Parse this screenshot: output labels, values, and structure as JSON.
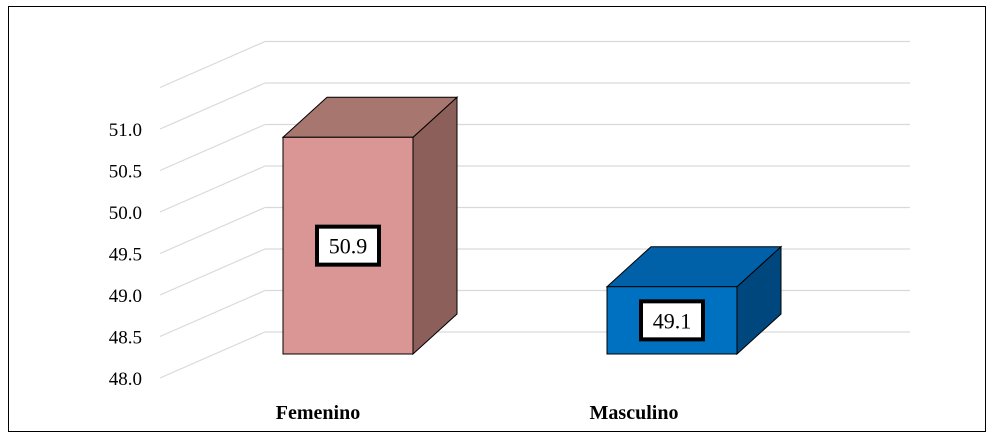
{
  "chart_data": {
    "type": "bar",
    "style": "3d-column",
    "categories": [
      "Femenino",
      "Masculino"
    ],
    "values": [
      50.9,
      49.1
    ],
    "data_labels": [
      "50.9",
      "49.1"
    ],
    "ylim": [
      48.0,
      51.0
    ],
    "yticks": [
      "48.0",
      "48.5",
      "49.0",
      "49.5",
      "50.0",
      "50.5",
      "51.0"
    ],
    "grid": true,
    "legend": "none",
    "colors": {
      "femenino_front": "#d99694",
      "femenino_top": "#a6766f",
      "femenino_side": "#8c5f5a",
      "masculino_front": "#0070c0",
      "masculino_top": "#0061a8",
      "masculino_side": "#00477e",
      "grid": "#d9d9d9"
    }
  }
}
